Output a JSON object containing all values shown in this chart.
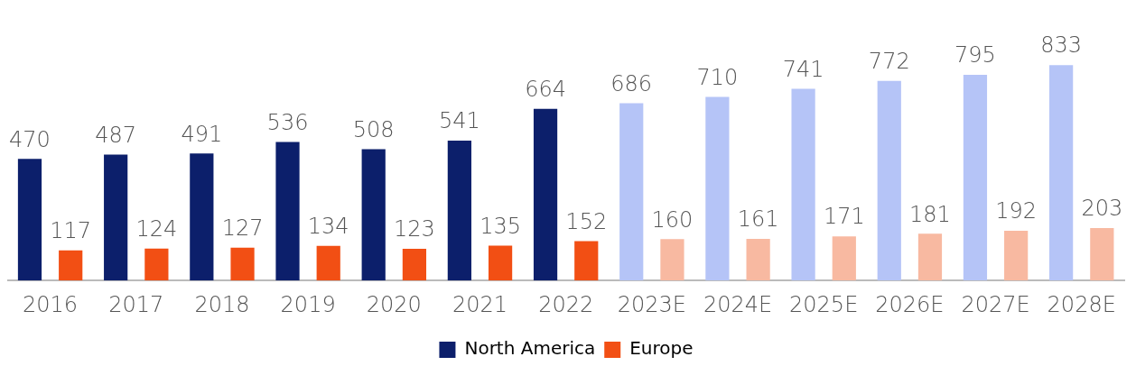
{
  "chart_data": {
    "type": "bar",
    "categories": [
      "2016",
      "2017",
      "2018",
      "2019",
      "2020",
      "2021",
      "2022",
      "2023E",
      "2024E",
      "2025E",
      "2026E",
      "2027E",
      "2028E"
    ],
    "series": [
      {
        "name": "North America",
        "color": "#0c1f6b",
        "colors": [
          "#0c1f6b",
          "#0c1f6b",
          "#0c1f6b",
          "#0c1f6b",
          "#0c1f6b",
          "#0c1f6b",
          "#0c1f6b",
          "#b5c4f7",
          "#b5c4f7",
          "#b5c4f7",
          "#b5c4f7",
          "#b5c4f7",
          "#b5c4f7"
        ],
        "values": [
          470,
          487,
          491,
          536,
          508,
          541,
          664,
          686,
          710,
          741,
          772,
          795,
          833
        ]
      },
      {
        "name": "Europe",
        "color": "#f24f14",
        "colors": [
          "#f24f14",
          "#f24f14",
          "#f24f14",
          "#f24f14",
          "#f24f14",
          "#f24f14",
          "#f24f14",
          "#f8b9a1",
          "#f8b9a1",
          "#f8b9a1",
          "#f8b9a1",
          "#f8b9a1",
          "#f8b9a1"
        ],
        "values": [
          117,
          124,
          127,
          134,
          123,
          135,
          152,
          160,
          161,
          171,
          181,
          192,
          203
        ]
      }
    ],
    "data_labels": true,
    "legend": "bottom",
    "grid": false
  }
}
